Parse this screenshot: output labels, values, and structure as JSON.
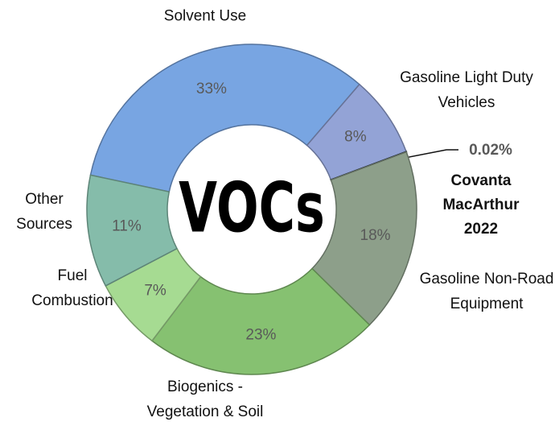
{
  "chart_data": {
    "type": "donut",
    "center_label": "VOCs",
    "categories": [
      "Solvent Use",
      "Gasoline Light Duty Vehicles",
      "Covanta MacArthur 2022",
      "Gasoline Non-Road Equipment",
      "Biogenics - Vegetation & Soil",
      "Fuel Combustion",
      "Other Sources"
    ],
    "values": [
      33,
      8,
      0.02,
      18,
      23,
      7,
      11
    ],
    "value_labels": [
      "33%",
      "8%",
      "0.02%",
      "18%",
      "23%",
      "7%",
      "11%"
    ],
    "colors": [
      "#78a5e2",
      "#93a3d6",
      "#1f2a33",
      "#8d9f8a",
      "#86c171",
      "#a6db92",
      "#85bcaa"
    ],
    "highlight": "Covanta MacArthur 2022"
  }
}
